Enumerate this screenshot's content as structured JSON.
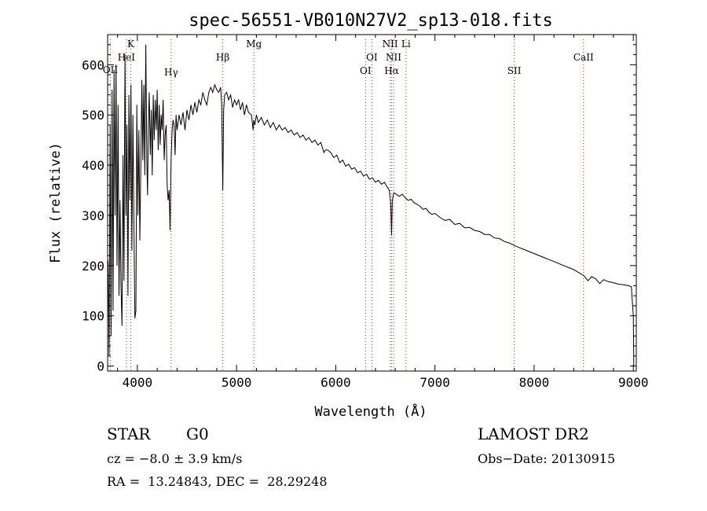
{
  "chart_data": {
    "type": "line",
    "title": "spec-56551-VB010N27V2_sp13-018.fits",
    "xlabel": "Wavelength (Å)",
    "ylabel": "Flux (relative)",
    "xlim": [
      3700,
      9030
    ],
    "ylim": [
      -10,
      660
    ],
    "grid": false,
    "x_ticks": [
      4000,
      5000,
      6000,
      7000,
      8000,
      9000
    ],
    "y_ticks": [
      0,
      100,
      200,
      300,
      400,
      500,
      600
    ],
    "series": [
      {
        "points": [
          [
            3705,
            210
          ],
          [
            3715,
            20
          ],
          [
            3725,
            480
          ],
          [
            3735,
            60
          ],
          [
            3745,
            550
          ],
          [
            3755,
            110
          ],
          [
            3765,
            590
          ],
          [
            3775,
            300
          ],
          [
            3785,
            600
          ],
          [
            3795,
            200
          ],
          [
            3805,
            520
          ],
          [
            3815,
            140
          ],
          [
            3825,
            330
          ],
          [
            3835,
            160
          ],
          [
            3845,
            80
          ],
          [
            3855,
            420
          ],
          [
            3865,
            170
          ],
          [
            3875,
            620
          ],
          [
            3885,
            300
          ],
          [
            3895,
            480
          ],
          [
            3905,
            140
          ],
          [
            3915,
            540
          ],
          [
            3925,
            330
          ],
          [
            3935,
            560
          ],
          [
            3945,
            230
          ],
          [
            3955,
            500
          ],
          [
            3965,
            280
          ],
          [
            3975,
            95
          ],
          [
            3985,
            110
          ],
          [
            3995,
            520
          ],
          [
            4005,
            300
          ],
          [
            4015,
            470
          ],
          [
            4025,
            250
          ],
          [
            4035,
            400
          ],
          [
            4045,
            570
          ],
          [
            4055,
            410
          ],
          [
            4065,
            560
          ],
          [
            4075,
            380
          ],
          [
            4085,
            640
          ],
          [
            4095,
            410
          ],
          [
            4102,
            340
          ],
          [
            4110,
            470
          ],
          [
            4120,
            545
          ],
          [
            4130,
            420
          ],
          [
            4140,
            510
          ],
          [
            4150,
            380
          ],
          [
            4160,
            540
          ],
          [
            4170,
            450
          ],
          [
            4180,
            530
          ],
          [
            4190,
            470
          ],
          [
            4200,
            550
          ],
          [
            4210,
            430
          ],
          [
            4220,
            520
          ],
          [
            4230,
            440
          ],
          [
            4240,
            500
          ],
          [
            4250,
            470
          ],
          [
            4260,
            530
          ],
          [
            4270,
            410
          ],
          [
            4280,
            460
          ],
          [
            4290,
            480
          ],
          [
            4300,
            360
          ],
          [
            4310,
            330
          ],
          [
            4320,
            350
          ],
          [
            4330,
            270
          ],
          [
            4340,
            410
          ],
          [
            4350,
            470
          ],
          [
            4360,
            490
          ],
          [
            4370,
            480
          ],
          [
            4380,
            420
          ],
          [
            4390,
            500
          ],
          [
            4400,
            470
          ],
          [
            4420,
            500
          ],
          [
            4440,
            480
          ],
          [
            4460,
            505
          ],
          [
            4480,
            470
          ],
          [
            4500,
            510
          ],
          [
            4520,
            490
          ],
          [
            4540,
            520
          ],
          [
            4560,
            500
          ],
          [
            4580,
            525
          ],
          [
            4600,
            505
          ],
          [
            4620,
            530
          ],
          [
            4640,
            520
          ],
          [
            4660,
            545
          ],
          [
            4680,
            530
          ],
          [
            4700,
            520
          ],
          [
            4720,
            545
          ],
          [
            4740,
            555
          ],
          [
            4760,
            545
          ],
          [
            4780,
            560
          ],
          [
            4800,
            550
          ],
          [
            4820,
            545
          ],
          [
            4840,
            555
          ],
          [
            4850,
            520
          ],
          [
            4861,
            350
          ],
          [
            4870,
            510
          ],
          [
            4880,
            540
          ],
          [
            4900,
            545
          ],
          [
            4920,
            530
          ],
          [
            4940,
            540
          ],
          [
            4960,
            515
          ],
          [
            4980,
            530
          ],
          [
            5000,
            520
          ],
          [
            5020,
            530
          ],
          [
            5040,
            510
          ],
          [
            5060,
            525
          ],
          [
            5080,
            500
          ],
          [
            5100,
            520
          ],
          [
            5120,
            505
          ],
          [
            5150,
            500
          ],
          [
            5167,
            470
          ],
          [
            5173,
            490
          ],
          [
            5184,
            480
          ],
          [
            5200,
            500
          ],
          [
            5220,
            485
          ],
          [
            5250,
            495
          ],
          [
            5280,
            480
          ],
          [
            5310,
            490
          ],
          [
            5340,
            475
          ],
          [
            5370,
            485
          ],
          [
            5400,
            470
          ],
          [
            5430,
            480
          ],
          [
            5460,
            470
          ],
          [
            5490,
            475
          ],
          [
            5520,
            465
          ],
          [
            5550,
            470
          ],
          [
            5580,
            460
          ],
          [
            5610,
            465
          ],
          [
            5640,
            455
          ],
          [
            5670,
            460
          ],
          [
            5700,
            450
          ],
          [
            5730,
            455
          ],
          [
            5760,
            445
          ],
          [
            5790,
            450
          ],
          [
            5820,
            440
          ],
          [
            5850,
            445
          ],
          [
            5880,
            425
          ],
          [
            5895,
            430
          ],
          [
            5920,
            430
          ],
          [
            5950,
            425
          ],
          [
            5980,
            415
          ],
          [
            6010,
            420
          ],
          [
            6040,
            405
          ],
          [
            6070,
            410
          ],
          [
            6100,
            398
          ],
          [
            6130,
            402
          ],
          [
            6160,
            392
          ],
          [
            6190,
            395
          ],
          [
            6220,
            385
          ],
          [
            6250,
            388
          ],
          [
            6280,
            378
          ],
          [
            6310,
            382
          ],
          [
            6340,
            372
          ],
          [
            6370,
            375
          ],
          [
            6400,
            366
          ],
          [
            6430,
            370
          ],
          [
            6460,
            362
          ],
          [
            6490,
            366
          ],
          [
            6520,
            356
          ],
          [
            6540,
            350
          ],
          [
            6555,
            320
          ],
          [
            6563,
            260
          ],
          [
            6570,
            330
          ],
          [
            6585,
            345
          ],
          [
            6610,
            342
          ],
          [
            6640,
            338
          ],
          [
            6670,
            342
          ],
          [
            6700,
            335
          ],
          [
            6730,
            330
          ],
          [
            6760,
            332
          ],
          [
            6790,
            325
          ],
          [
            6820,
            322
          ],
          [
            6850,
            318
          ],
          [
            6880,
            312
          ],
          [
            6910,
            314
          ],
          [
            6940,
            306
          ],
          [
            6970,
            302
          ],
          [
            7000,
            304
          ],
          [
            7050,
            296
          ],
          [
            7100,
            290
          ],
          [
            7150,
            292
          ],
          [
            7200,
            282
          ],
          [
            7250,
            284
          ],
          [
            7300,
            275
          ],
          [
            7350,
            276
          ],
          [
            7400,
            270
          ],
          [
            7450,
            268
          ],
          [
            7500,
            262
          ],
          [
            7550,
            262
          ],
          [
            7600,
            255
          ],
          [
            7650,
            254
          ],
          [
            7700,
            248
          ],
          [
            7750,
            245
          ],
          [
            7800,
            240
          ],
          [
            7850,
            236
          ],
          [
            7900,
            232
          ],
          [
            7950,
            228
          ],
          [
            8000,
            224
          ],
          [
            8050,
            220
          ],
          [
            8100,
            216
          ],
          [
            8150,
            212
          ],
          [
            8200,
            208
          ],
          [
            8250,
            204
          ],
          [
            8300,
            200
          ],
          [
            8350,
            196
          ],
          [
            8400,
            192
          ],
          [
            8450,
            186
          ],
          [
            8500,
            180
          ],
          [
            8542,
            170
          ],
          [
            8580,
            178
          ],
          [
            8620,
            174
          ],
          [
            8662,
            164
          ],
          [
            8700,
            172
          ],
          [
            8750,
            168
          ],
          [
            8800,
            166
          ],
          [
            8850,
            163
          ],
          [
            8900,
            162
          ],
          [
            8950,
            160
          ],
          [
            8980,
            158
          ],
          [
            9000,
            100
          ],
          [
            9005,
            0
          ]
        ]
      }
    ],
    "spectral_lines": [
      {
        "name": "OII",
        "x": 3727,
        "label_y": 89
      },
      {
        "name": "K",
        "x": 3934,
        "label_y": 56
      },
      {
        "name": "HeI",
        "x": 3889,
        "label_y": 73
      },
      {
        "name": "Hγ",
        "x": 4340,
        "label_y": 92
      },
      {
        "name": "Hβ",
        "x": 4861,
        "label_y": 73
      },
      {
        "name": "Mg",
        "x": 5175,
        "label_y": 56
      },
      {
        "name": "OI",
        "x": 6300,
        "label_y": 90
      },
      {
        "name": "OI",
        "x": 6364,
        "label_y": 73
      },
      {
        "name": "NII",
        "x": 6548,
        "label_y": 56
      },
      {
        "name": "NII",
        "x": 6583,
        "label_y": 73
      },
      {
        "name": "Hα",
        "x": 6563,
        "label_y": 90
      },
      {
        "name": "Li",
        "x": 6708,
        "label_y": 56
      },
      {
        "name": "SII",
        "x": 7800,
        "label_y": 90
      },
      {
        "name": "CaII",
        "x": 8498,
        "label_y": 73
      }
    ],
    "line_color": "#000000",
    "marker_color": "#cc3333"
  },
  "info": {
    "object_class": "STAR",
    "subclass": "G0",
    "survey": "LAMOST DR2",
    "velocity": "cz = −8.0 ± 3.9 km/s",
    "obs_date": "Obs−Date: 20130915",
    "coords": "RA =  13.24843, DEC =  28.29248"
  }
}
